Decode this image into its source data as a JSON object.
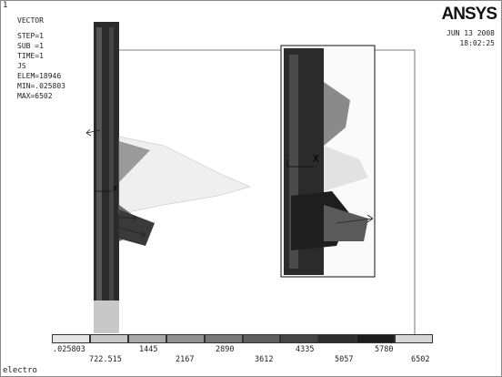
{
  "window_number": "1",
  "info": {
    "lines": [
      "VECTOR",
      "STEP=1",
      "SUB =1",
      "TIME=1",
      "JS",
      "ELEM=18946",
      "MIN=.025803",
      "MAX=6502"
    ]
  },
  "logo": "ANSYS",
  "datetime": {
    "date": "JUN 13 2008",
    "time": "18:02:25"
  },
  "axis_marker": "X",
  "legend": {
    "upper_labels": [
      ".025803",
      "1445",
      "2890",
      "4335",
      "5780"
    ],
    "lower_labels": [
      "722.515",
      "2167",
      "3612",
      "5057",
      "6502"
    ],
    "colors": [
      "#e6e6e6",
      "#c8c8c8",
      "#aaaaaa",
      "#909090",
      "#787878",
      "#5e5e5e",
      "#454545",
      "#2e2e2e",
      "#1c1c1c",
      "#d6d6d6"
    ]
  },
  "jobname": "electro"
}
